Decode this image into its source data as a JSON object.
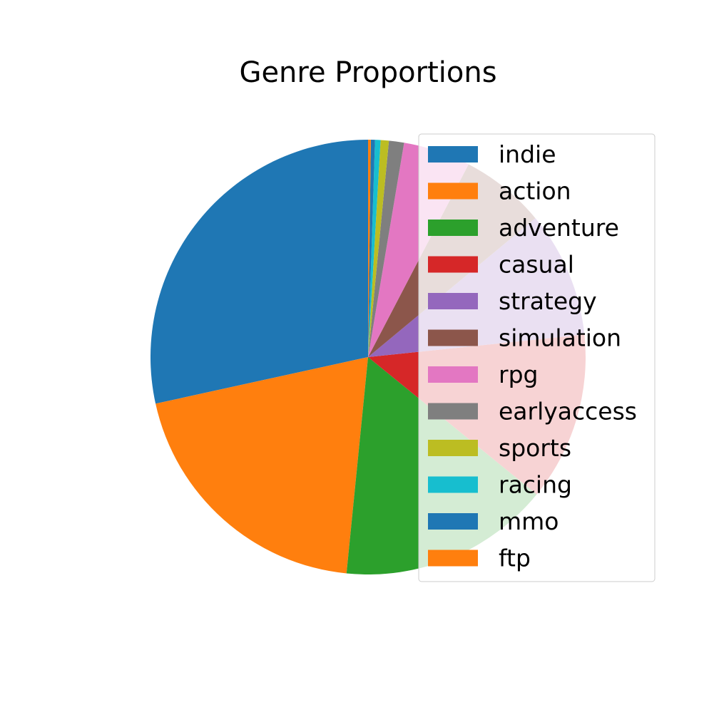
{
  "chart_data": {
    "type": "pie",
    "title": "Genre Proportions",
    "start_angle_deg": 90,
    "direction": "counterclockwise",
    "legend_position": "right",
    "slices": [
      {
        "label": "indie",
        "value": 27.9,
        "color": "#1f77b4"
      },
      {
        "label": "action",
        "value": 19.6,
        "color": "#ff7f0e"
      },
      {
        "label": "adventure",
        "value": 15.4,
        "color": "#2ca02c"
      },
      {
        "label": "casual",
        "value": 12.3,
        "color": "#d62728"
      },
      {
        "label": "strategy",
        "value": 9.2,
        "color": "#9467bd"
      },
      {
        "label": "simulation",
        "value": 6.2,
        "color": "#8c564b"
      },
      {
        "label": "rpg",
        "value": 4.9,
        "color": "#e377c2"
      },
      {
        "label": "earlyaccess",
        "value": 1.1,
        "color": "#7f7f7f"
      },
      {
        "label": "sports",
        "value": 0.6,
        "color": "#bcbd22"
      },
      {
        "label": "racing",
        "value": 0.4,
        "color": "#17becf"
      },
      {
        "label": "mmo",
        "value": 0.3,
        "color": "#1f77b4"
      },
      {
        "label": "ftp",
        "value": 0.2,
        "color": "#ff7f0e"
      }
    ]
  }
}
